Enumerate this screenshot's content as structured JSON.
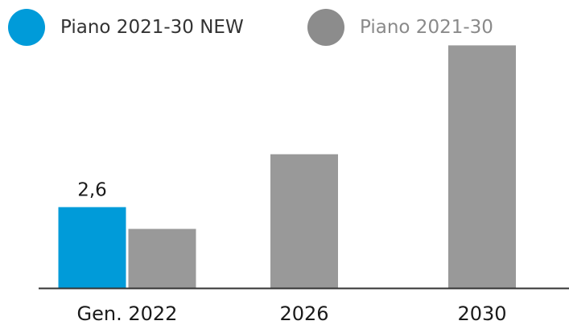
{
  "chart_data": {
    "type": "bar",
    "categories": [
      "Gen. 2022",
      "2026",
      "2030"
    ],
    "series": [
      {
        "name": "Piano 2021-30 NEW",
        "color": "#009bd9",
        "values": [
          2.6,
          null,
          null
        ]
      },
      {
        "name": "Piano 2021-30",
        "color": "#999999",
        "values": [
          1.9,
          4.3,
          7.8
        ]
      }
    ],
    "data_labels": [
      {
        "series": 0,
        "category": 0,
        "text": "2,6"
      }
    ],
    "ylim": [
      0,
      9
    ],
    "grid": false,
    "legend": "top-left",
    "title": "",
    "xlabel": "",
    "ylabel": ""
  }
}
